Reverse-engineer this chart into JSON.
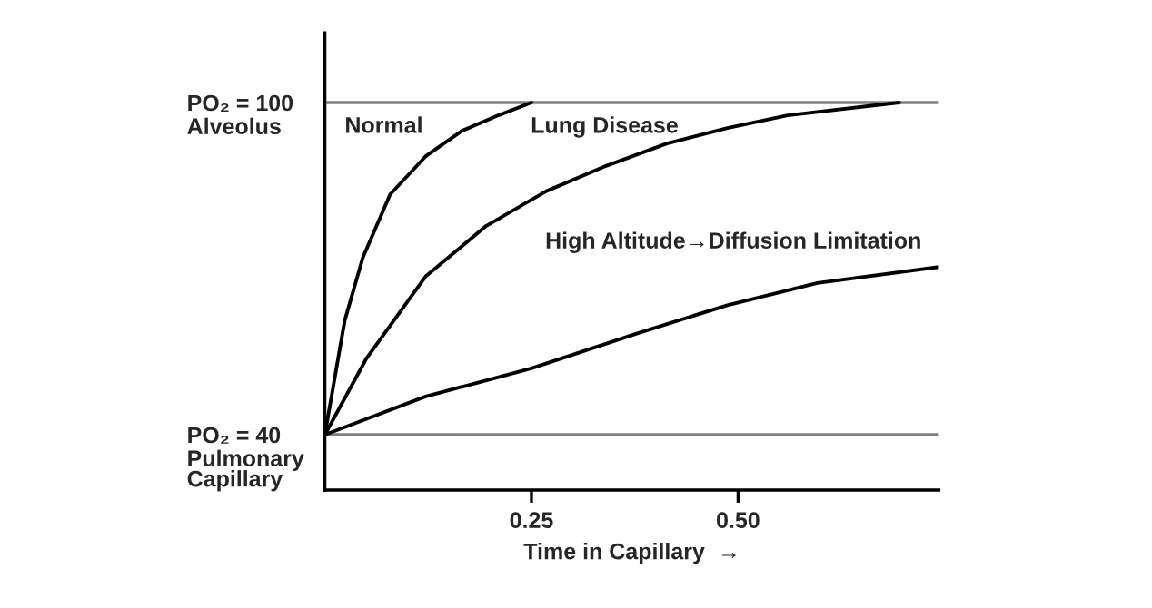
{
  "chart_data": {
    "type": "line",
    "xlabel": "Time in Capillary  →",
    "series": [
      {
        "name": "Normal",
        "color": "#000000",
        "x": [
          0,
          0.024,
          0.046,
          0.079,
          0.122,
          0.166,
          0.21,
          0.25
        ],
        "values": [
          40,
          60.6,
          72,
          83.4,
          90.3,
          94.9,
          97.7,
          100
        ]
      },
      {
        "name": "Lung Disease",
        "color": "#000000",
        "x": [
          0,
          0.05,
          0.122,
          0.195,
          0.268,
          0.341,
          0.414,
          0.487,
          0.56,
          0.695
        ],
        "values": [
          40,
          53.7,
          68.6,
          77.7,
          84,
          88.6,
          92.6,
          95.4,
          97.7,
          100
        ]
      },
      {
        "name": "High Altitude→Diffusion Limitation",
        "color": "#000000",
        "x": [
          0,
          0.122,
          0.25,
          0.378,
          0.487,
          0.596,
          0.743
        ],
        "values": [
          40,
          46.9,
          52,
          58.3,
          63.4,
          67.4,
          70.3
        ]
      }
    ],
    "xlim": [
      0,
      0.743
    ],
    "ylim": [
      30,
      112.6
    ],
    "xticks": [
      0.25,
      {
        "value": 0.5,
        "label": "0.50"
      }
    ],
    "yticks": [
      {
        "value": 40,
        "label": "PO₂ = 40"
      },
      {
        "value": 100,
        "label": "PO₂ = 100"
      }
    ],
    "annotations": [
      "Pulmonary\nCapillary",
      "Alveolus"
    ],
    "grid": "y",
    "marker": "none",
    "line_style": "solid",
    "legend": false
  }
}
